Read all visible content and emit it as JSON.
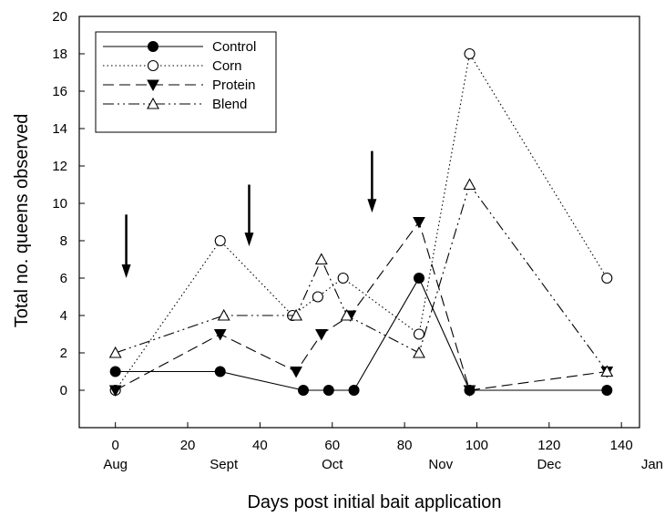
{
  "chart_data": {
    "type": "line",
    "title": "",
    "xlabel": "Days post initial bait application",
    "ylabel": "Total no. queens observed",
    "xlim": [
      -10,
      145
    ],
    "ylim": [
      -2,
      20
    ],
    "x_ticks": [
      0,
      20,
      40,
      60,
      80,
      100,
      120,
      140
    ],
    "y_ticks": [
      0,
      2,
      4,
      6,
      8,
      10,
      12,
      14,
      16,
      18,
      20
    ],
    "month_labels": [
      {
        "x": 0,
        "label": "Aug"
      },
      {
        "x": 30,
        "label": "Sept"
      },
      {
        "x": 60,
        "label": "Oct"
      },
      {
        "x": 90,
        "label": "Nov"
      },
      {
        "x": 120,
        "label": "Dec"
      },
      {
        "x": 150,
        "label": "Jan"
      }
    ],
    "bait_application_arrows": [
      {
        "x": 3,
        "y_top": 9.4,
        "y_bottom": 6
      },
      {
        "x": 37,
        "y_top": 11,
        "y_bottom": 7.7
      },
      {
        "x": 71,
        "y_top": 12.8,
        "y_bottom": 9.5
      }
    ],
    "legend_position": "top-left",
    "grid": false,
    "series": [
      {
        "name": "Control",
        "line_style": "solid",
        "marker": "filled-circle",
        "points": [
          [
            0,
            1
          ],
          [
            29,
            1
          ],
          [
            52,
            0
          ],
          [
            59,
            0
          ],
          [
            66,
            0
          ],
          [
            84,
            6
          ],
          [
            98,
            0
          ],
          [
            136,
            0
          ]
        ]
      },
      {
        "name": "Corn",
        "line_style": "dotted",
        "marker": "open-circle",
        "points": [
          [
            0,
            0
          ],
          [
            29,
            8
          ],
          [
            49,
            4
          ],
          [
            56,
            5
          ],
          [
            63,
            6
          ],
          [
            84,
            3
          ],
          [
            98,
            18
          ],
          [
            136,
            6
          ]
        ]
      },
      {
        "name": "Protein",
        "line_style": "dashed",
        "marker": "filled-triangle-down",
        "points": [
          [
            0,
            0
          ],
          [
            29,
            3
          ],
          [
            50,
            1
          ],
          [
            57,
            3
          ],
          [
            65,
            4
          ],
          [
            84,
            9
          ],
          [
            98,
            0
          ],
          [
            136,
            1
          ]
        ]
      },
      {
        "name": "Blend",
        "line_style": "dash-dot-dot",
        "marker": "open-triangle-up",
        "points": [
          [
            0,
            2
          ],
          [
            30,
            4
          ],
          [
            50,
            4
          ],
          [
            57,
            7
          ],
          [
            64,
            4
          ],
          [
            84,
            2
          ],
          [
            98,
            11
          ],
          [
            136,
            1
          ]
        ]
      }
    ]
  }
}
